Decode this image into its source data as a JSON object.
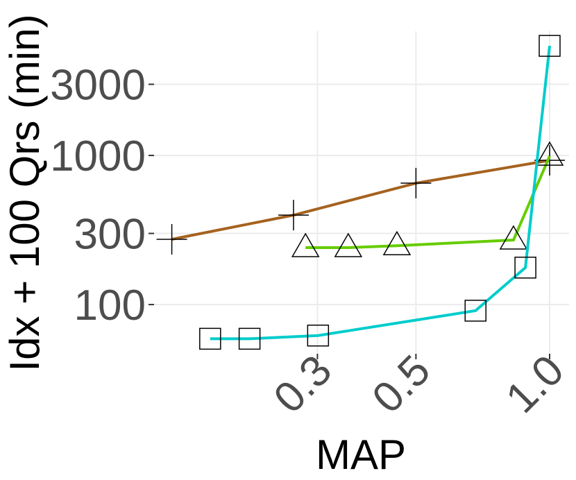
{
  "chart_data": {
    "type": "line",
    "x_label": "MAP",
    "y_label": "Idx + 100 Qrs (min)",
    "xlog": true,
    "ylog": true,
    "grid": true,
    "xlim": [
      0.1286,
      1.106
    ],
    "ylim": [
      46.8,
      6808
    ],
    "xticks": [
      0.3,
      0.5,
      {
        "value": 1,
        "label": "1.0"
      }
    ],
    "yticks": [
      100,
      300,
      1000,
      3000
    ],
    "series": [
      {
        "color": "#a5621f",
        "marker": "plus",
        "x": [
          0.141,
          0.265,
          0.5,
          1.0
        ],
        "values": [
          274,
          398,
          652,
          927
        ]
      },
      {
        "color": "#66cc00",
        "marker": "triangle",
        "x": [
          0.282,
          0.352,
          0.453,
          0.829,
          1.0
        ],
        "values": [
          241,
          241,
          248,
          271,
          989
        ]
      },
      {
        "color": "#00cccc",
        "marker": "square",
        "x": [
          0.172,
          0.211,
          0.301,
          0.681,
          0.882,
          1.0
        ],
        "values": [
          59,
          59,
          62,
          91,
          177,
          5430
        ]
      }
    ]
  }
}
